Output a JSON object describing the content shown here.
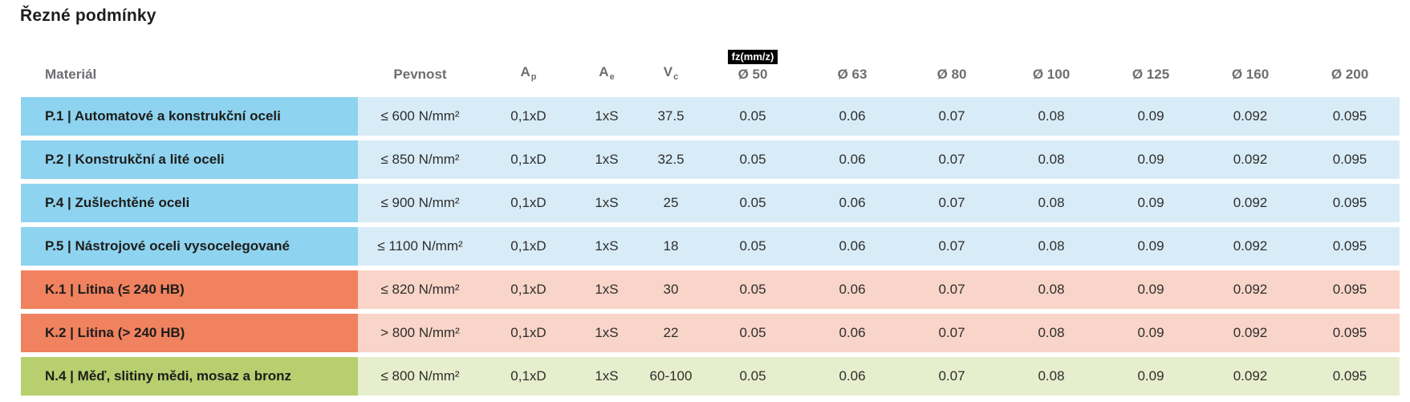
{
  "page": {
    "title": "Řezné podmínky"
  },
  "table": {
    "headers": {
      "material": "Materiál",
      "pevnost": "Pevnost",
      "ap_base": "A",
      "ap_sub": "p",
      "ae_base": "A",
      "ae_sub": "e",
      "vc_base": "V",
      "vc_sub": "c",
      "fz_badge": "fz(mm/z)",
      "diameters": [
        "Ø 50",
        "Ø 63",
        "Ø 80",
        "Ø 100",
        "Ø 125",
        "Ø 160",
        "Ø 200"
      ]
    },
    "rows": [
      {
        "group": "steel",
        "material": "P.1 | Automatové a konstrukční oceli",
        "pevnost": "≤ 600 N/mm²",
        "ap": "0,1xD",
        "ae": "1xS",
        "vc": "37.5",
        "fz": [
          "0.05",
          "0.06",
          "0.07",
          "0.08",
          "0.09",
          "0.092",
          "0.095"
        ]
      },
      {
        "group": "steel",
        "material": "P.2 | Konstrukční a lité oceli",
        "pevnost": "≤ 850 N/mm²",
        "ap": "0,1xD",
        "ae": "1xS",
        "vc": "32.5",
        "fz": [
          "0.05",
          "0.06",
          "0.07",
          "0.08",
          "0.09",
          "0.092",
          "0.095"
        ]
      },
      {
        "group": "steel",
        "material": "P.4 | Zušlechtěné oceli",
        "pevnost": "≤ 900 N/mm²",
        "ap": "0,1xD",
        "ae": "1xS",
        "vc": "25",
        "fz": [
          "0.05",
          "0.06",
          "0.07",
          "0.08",
          "0.09",
          "0.092",
          "0.095"
        ]
      },
      {
        "group": "steel",
        "material": "P.5 | Nástrojové oceli vysocelegované",
        "pevnost": "≤ 1100 N/mm²",
        "ap": "0,1xD",
        "ae": "1xS",
        "vc": "18",
        "fz": [
          "0.05",
          "0.06",
          "0.07",
          "0.08",
          "0.09",
          "0.092",
          "0.095"
        ]
      },
      {
        "group": "cast",
        "material": "K.1 | Litina (≤ 240 HB)",
        "pevnost": "≤ 820 N/mm²",
        "ap": "0,1xD",
        "ae": "1xS",
        "vc": "30",
        "fz": [
          "0.05",
          "0.06",
          "0.07",
          "0.08",
          "0.09",
          "0.092",
          "0.095"
        ]
      },
      {
        "group": "cast",
        "material": "K.2 | Litina (> 240 HB)",
        "pevnost": "> 800 N/mm²",
        "ap": "0,1xD",
        "ae": "1xS",
        "vc": "22",
        "fz": [
          "0.05",
          "0.06",
          "0.07",
          "0.08",
          "0.09",
          "0.092",
          "0.095"
        ]
      },
      {
        "group": "nonferrous",
        "material": "N.4 | Měď, slitiny mědi, mosaz a bronz",
        "pevnost": "≤ 800 N/mm²",
        "ap": "0,1xD",
        "ae": "1xS",
        "vc": "60-100",
        "fz": [
          "0.05",
          "0.06",
          "0.07",
          "0.08",
          "0.09",
          "0.092",
          "0.095"
        ]
      }
    ],
    "colors": {
      "steel_label": "#8ed3ef",
      "steel_body": "#d8ecf8",
      "cast_label": "#f08260",
      "cast_body": "#f9d4c8",
      "nonferrous_label": "#b7cf6f",
      "nonferrous_body": "#e7eecd",
      "header_text": "#6d6e71",
      "title_text": "#1d1d1b",
      "badge_bg": "#000000",
      "badge_text": "#ffffff"
    }
  }
}
